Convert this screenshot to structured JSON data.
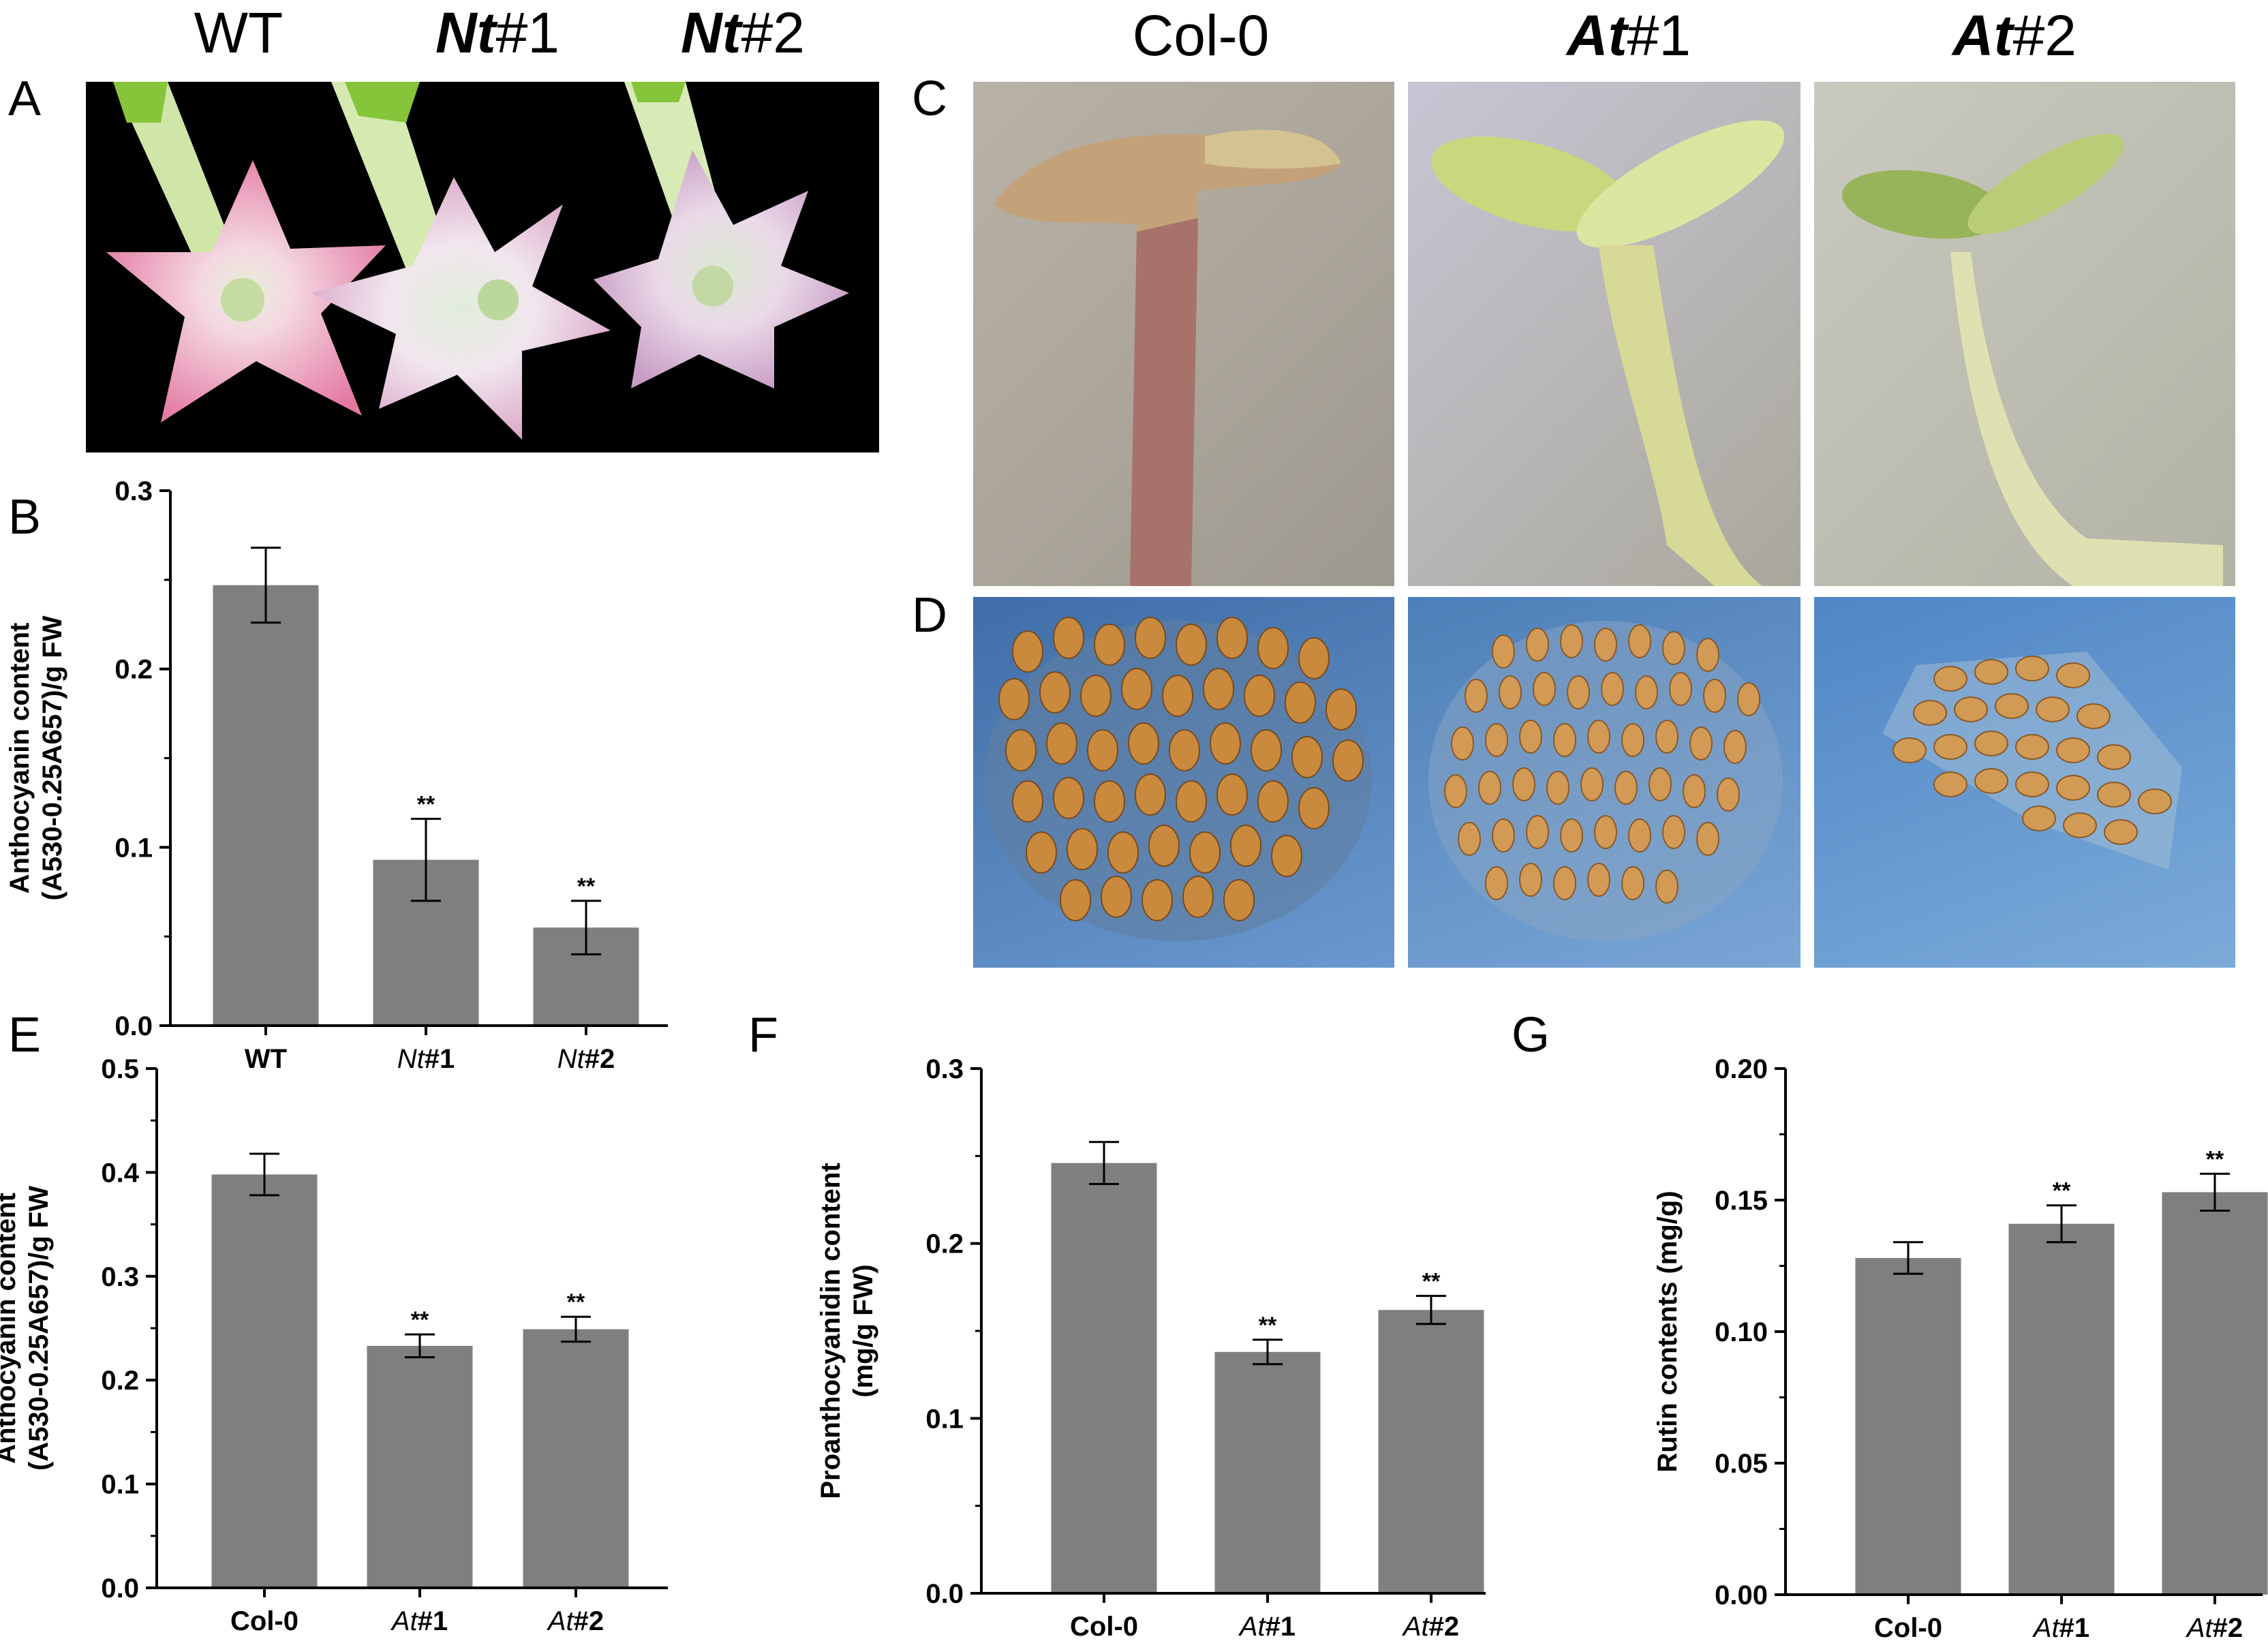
{
  "panel_letters": {
    "a": "A",
    "b": "B",
    "c": "C",
    "d": "D",
    "e": "E",
    "f": "F",
    "g": "G"
  },
  "panel_a": {
    "headers": [
      {
        "prefix": "",
        "text": "WT"
      },
      {
        "prefix": "Nt",
        "text": "#1"
      },
      {
        "prefix": "Nt",
        "text": "#2"
      }
    ],
    "photo_desc": "Tobacco flowers on black background"
  },
  "panel_cd": {
    "headers": [
      {
        "prefix": "",
        "text": "Col-0"
      },
      {
        "prefix": "At",
        "text": "#1"
      },
      {
        "prefix": "At",
        "text": "#2"
      }
    ]
  },
  "colors": {
    "bar": "#7f7f7f",
    "axis": "#000000",
    "flower_pink": "#e98aae",
    "seed": "#c98a3e",
    "water_blue": "#4f87c2"
  },
  "chart_data": [
    {
      "id": "B",
      "type": "bar",
      "categories": [
        {
          "prefix": "",
          "text": "WT"
        },
        {
          "prefix": "Nt",
          "text": "#1"
        },
        {
          "prefix": "Nt",
          "text": "#2"
        }
      ],
      "values": [
        0.247,
        0.093,
        0.055
      ],
      "errors": [
        0.021,
        0.023,
        0.015
      ],
      "significance": [
        "",
        "**",
        "**"
      ],
      "ylim": [
        0,
        0.3
      ],
      "yticks": [
        "0.0",
        "0.1",
        "0.2",
        "0.3"
      ],
      "ylabel_lines": [
        "Anthocyanin content",
        "(A530-0.25A657)/g FW"
      ],
      "xlabel": ""
    },
    {
      "id": "E",
      "type": "bar",
      "categories": [
        {
          "prefix": "",
          "text": "Col-0"
        },
        {
          "prefix": "At",
          "text": "#1"
        },
        {
          "prefix": "At",
          "text": "#2"
        }
      ],
      "values": [
        0.398,
        0.233,
        0.249
      ],
      "errors": [
        0.02,
        0.011,
        0.012
      ],
      "significance": [
        "",
        "**",
        "**"
      ],
      "ylim": [
        0,
        0.5
      ],
      "yticks": [
        "0.0",
        "0.1",
        "0.2",
        "0.3",
        "0.4",
        "0.5"
      ],
      "ylabel_lines": [
        "Anthocyanin content",
        "(A530-0.25A657)/g FW"
      ],
      "xlabel": ""
    },
    {
      "id": "F",
      "type": "bar",
      "categories": [
        {
          "prefix": "",
          "text": "Col-0"
        },
        {
          "prefix": "At",
          "text": "#1"
        },
        {
          "prefix": "At",
          "text": "#2"
        }
      ],
      "values": [
        0.246,
        0.138,
        0.162
      ],
      "errors": [
        0.012,
        0.007,
        0.008
      ],
      "significance": [
        "",
        "**",
        "**"
      ],
      "ylim": [
        0,
        0.3
      ],
      "yticks": [
        "0.0",
        "0.1",
        "0.2",
        "0.3"
      ],
      "ylabel_lines": [
        "Proanthocyanidin content",
        "(mg/g FW)"
      ],
      "xlabel": ""
    },
    {
      "id": "G",
      "type": "bar",
      "categories": [
        {
          "prefix": "",
          "text": "Col-0"
        },
        {
          "prefix": "At",
          "text": "#1"
        },
        {
          "prefix": "At",
          "text": "#2"
        }
      ],
      "values": [
        0.128,
        0.141,
        0.153
      ],
      "errors": [
        0.006,
        0.007,
        0.007
      ],
      "significance": [
        "",
        "**",
        "**"
      ],
      "ylim": [
        0,
        0.2
      ],
      "yticks": [
        "0.00",
        "0.05",
        "0.10",
        "0.15",
        "0.20"
      ],
      "ylabel_lines": [
        "Rutin contents (mg/g)"
      ],
      "xlabel": ""
    }
  ]
}
